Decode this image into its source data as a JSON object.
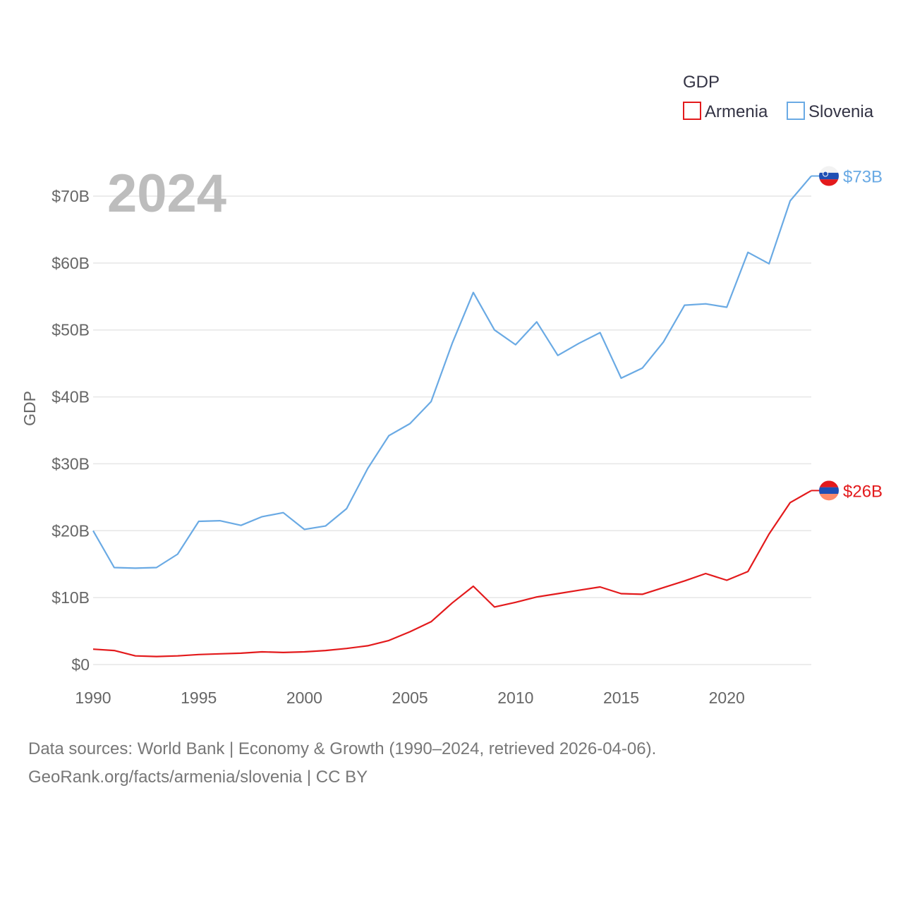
{
  "chart_data": {
    "type": "line",
    "title": "",
    "year_label": "2024",
    "xlabel": "",
    "ylabel": "GDP",
    "xlim": [
      1990,
      2024
    ],
    "ylim": [
      0,
      70
    ],
    "x_ticks": [
      1990,
      1995,
      2000,
      2005,
      2010,
      2015,
      2020
    ],
    "x_tick_labels": [
      "1990",
      "1995",
      "2000",
      "2005",
      "2010",
      "2015",
      "2020"
    ],
    "y_ticks": [
      0,
      10,
      20,
      30,
      40,
      50,
      60,
      70
    ],
    "y_tick_labels": [
      "$0",
      "$10B",
      "$20B",
      "$30B",
      "$40B",
      "$50B",
      "$60B",
      "$70B"
    ],
    "grid": true,
    "legend": {
      "title": "GDP",
      "position": "top-right"
    },
    "x": [
      1990,
      1991,
      1992,
      1993,
      1994,
      1995,
      1996,
      1997,
      1998,
      1999,
      2000,
      2001,
      2002,
      2003,
      2004,
      2005,
      2006,
      2007,
      2008,
      2009,
      2010,
      2011,
      2012,
      2013,
      2014,
      2015,
      2016,
      2017,
      2018,
      2019,
      2020,
      2021,
      2022,
      2023,
      2024
    ],
    "series": [
      {
        "name": "Armenia",
        "color": "#e31a1c",
        "end_label": "$26B",
        "values": [
          2.3,
          2.1,
          1.3,
          1.2,
          1.3,
          1.5,
          1.6,
          1.7,
          1.9,
          1.8,
          1.9,
          2.1,
          2.4,
          2.8,
          3.6,
          4.9,
          6.4,
          9.2,
          11.7,
          8.6,
          9.3,
          10.1,
          10.6,
          11.1,
          11.6,
          10.6,
          10.5,
          11.5,
          12.5,
          13.6,
          12.6,
          13.9,
          19.5,
          24.2,
          26.0
        ]
      },
      {
        "name": "Slovenia",
        "color": "#6aaae4",
        "end_label": "$73B",
        "values": [
          20.0,
          14.5,
          14.4,
          14.5,
          16.5,
          21.4,
          21.5,
          20.8,
          22.1,
          22.7,
          20.2,
          20.7,
          23.3,
          29.3,
          34.2,
          36.0,
          39.3,
          48.0,
          55.6,
          50.0,
          47.8,
          51.2,
          46.2,
          48.0,
          49.6,
          42.8,
          44.3,
          48.2,
          53.7,
          53.9,
          53.4,
          61.6,
          59.9,
          69.3,
          73.0
        ]
      }
    ]
  },
  "footer": {
    "line1": "Data sources: World Bank | Economy & Growth (1990–2024, retrieved 2026-04-06).",
    "line2": "GeoRank.org/facts/armenia/slovenia | CC BY"
  }
}
